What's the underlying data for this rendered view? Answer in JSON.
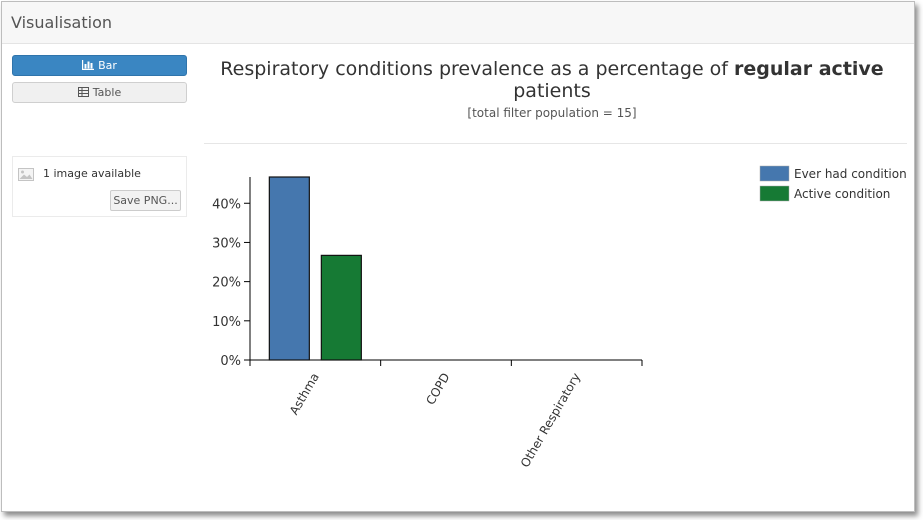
{
  "panel": {
    "title": "Visualisation"
  },
  "controls": {
    "bar_label": "Bar",
    "table_label": "Table",
    "bar_icon": "bar-chart-icon",
    "table_icon": "table-icon"
  },
  "image_panel": {
    "count_label": "1 image available",
    "save_label": "Save PNG...",
    "icon": "image-icon"
  },
  "header": {
    "title_prefix": "Respiratory conditions prevalence as a percentage of ",
    "title_bold": "regular active",
    "title_suffix": " patients",
    "subtitle": "[total filter population = 15]"
  },
  "colors": {
    "accent": "#3a86c2",
    "series_ever": "#4577ae",
    "series_active": "#167a34"
  },
  "chart_data": {
    "type": "bar",
    "categories": [
      "Asthma",
      "COPD",
      "Other Respiratory"
    ],
    "series": [
      {
        "name": "Ever had condition",
        "values": [
          46.7,
          0,
          0
        ],
        "color": "#4577ae"
      },
      {
        "name": "Active condition",
        "values": [
          26.7,
          0,
          0
        ],
        "color": "#167a34"
      }
    ],
    "yticks": [
      "0%",
      "10%",
      "20%",
      "30%",
      "40%"
    ],
    "ytick_values": [
      0,
      10,
      20,
      30,
      40
    ],
    "ylim": [
      0,
      46.7
    ],
    "legend_position": "top-right",
    "grid": false
  }
}
